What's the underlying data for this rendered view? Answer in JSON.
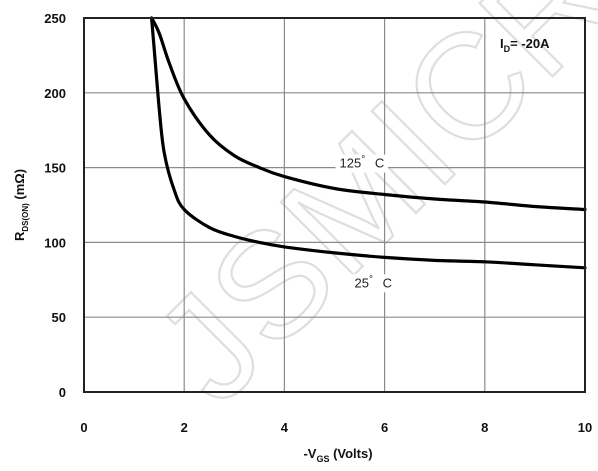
{
  "watermark": "JSMICR",
  "chart_data": {
    "type": "line",
    "xlabel_prefix": "-V",
    "xlabel_sub": "GS",
    "xlabel_suffix": " (Volts)",
    "ylabel_prefix": "R",
    "ylabel_sub": "DS(ON)",
    "ylabel_suffix": " (mΩ)",
    "xlim": [
      0,
      10
    ],
    "ylim": [
      0,
      250
    ],
    "xticks": [
      0,
      2,
      4,
      6,
      8,
      10
    ],
    "yticks": [
      0,
      50,
      100,
      150,
      200,
      250
    ],
    "grid": true,
    "condition": {
      "prefix": "I",
      "sub": "D",
      "suffix": "= -20A"
    },
    "series": [
      {
        "name": "125° C",
        "label_prefix": "125",
        "label_suffix": " C",
        "label_at": [
          5.1,
          150
        ],
        "color": "#000000",
        "x": [
          1.35,
          1.5,
          1.7,
          2.0,
          2.5,
          3.0,
          3.5,
          4.0,
          5.0,
          6.0,
          7.0,
          8.0,
          9.0,
          10.0
        ],
        "y": [
          250,
          240,
          220,
          196,
          172,
          158,
          150,
          144,
          136,
          132,
          129,
          127,
          124,
          122
        ]
      },
      {
        "name": "25° C",
        "label_prefix": "25",
        "label_suffix": " C",
        "label_at": [
          5.4,
          70
        ],
        "color": "#000000",
        "x": [
          1.35,
          1.4,
          1.5,
          1.6,
          1.8,
          2.0,
          2.5,
          3.0,
          3.5,
          4.0,
          5.0,
          6.0,
          7.0,
          8.0,
          9.0,
          10.0
        ],
        "y": [
          250,
          230,
          190,
          160,
          135,
          122,
          110,
          104,
          100,
          97,
          93,
          90,
          88,
          87,
          85,
          83
        ]
      }
    ]
  }
}
